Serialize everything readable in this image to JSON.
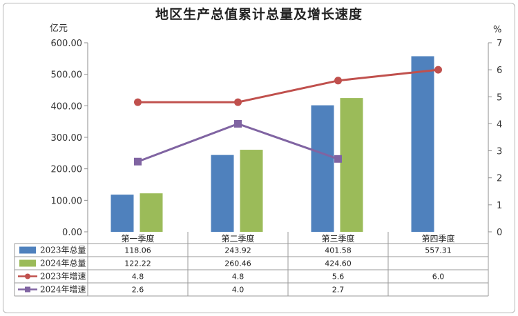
{
  "chart_data": {
    "type": "bar",
    "title": "地区生产总值累计总量及增长速度",
    "left_unit": "亿元",
    "right_unit": "%",
    "categories": [
      "第一季度",
      "第二季度",
      "第三季度",
      "第四季度"
    ],
    "ylim": [
      0,
      600
    ],
    "yticks": [
      "0.00",
      "100.00",
      "200.00",
      "300.00",
      "400.00",
      "500.00",
      "600.00"
    ],
    "y2lim": [
      0,
      7
    ],
    "y2ticks": [
      "0",
      "1",
      "2",
      "3",
      "4",
      "5",
      "6",
      "7"
    ],
    "bar_series": [
      {
        "name": "2023年总量",
        "color": "#4f81bd",
        "values": [
          118.06,
          243.92,
          401.58,
          557.31
        ],
        "labels": [
          "118.06",
          "243.92",
          "401.58",
          "557.31"
        ]
      },
      {
        "name": "2024年总量",
        "color": "#9bbb59",
        "values": [
          122.22,
          260.46,
          424.6,
          null
        ],
        "labels": [
          "122.22",
          "260.46",
          "424.60",
          ""
        ]
      }
    ],
    "line_series": [
      {
        "name": "2023年增速",
        "color": "#c0504d",
        "marker": "circle",
        "values": [
          4.8,
          4.8,
          5.6,
          6.0
        ],
        "labels": [
          "4.8",
          "4.8",
          "5.6",
          "6.0"
        ]
      },
      {
        "name": "2024年增速",
        "color": "#8064a2",
        "marker": "square",
        "values": [
          2.6,
          4.0,
          2.7,
          null
        ],
        "labels": [
          "2.6",
          "4.0",
          "2.7",
          ""
        ]
      }
    ],
    "grid": false,
    "legend": "data-table"
  }
}
